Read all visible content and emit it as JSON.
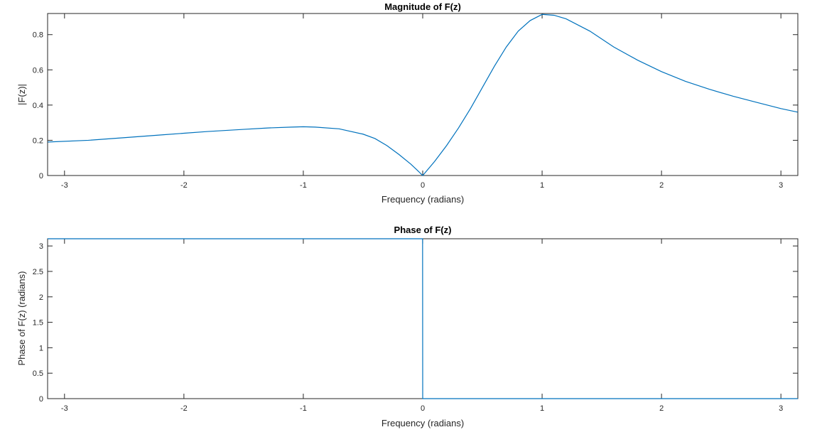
{
  "chart_data": [
    {
      "type": "line",
      "title": "Magnitude of F(z)",
      "xlabel": "Frequency (radians)",
      "ylabel": "|F(z)|",
      "xlim": [
        -3.1416,
        3.1416
      ],
      "ylim": [
        0,
        0.92
      ],
      "xticks": [
        -3,
        -2,
        -1,
        0,
        1,
        2,
        3
      ],
      "yticks": [
        0,
        0.2,
        0.4,
        0.6,
        0.8
      ],
      "yticklabels": [
        "0",
        "0.2",
        "0.4",
        "0.6",
        "0.8"
      ],
      "color": "#0072BD",
      "series": [
        {
          "x": [
            -3.14,
            -2.8,
            -2.5,
            -2.2,
            -2.0,
            -1.8,
            -1.5,
            -1.3,
            -1.1,
            -1.0,
            -0.9,
            -0.7,
            -0.5,
            -0.4,
            -0.3,
            -0.2,
            -0.1,
            -0.05,
            0.0,
            0.05,
            0.1,
            0.2,
            0.3,
            0.4,
            0.5,
            0.6,
            0.7,
            0.8,
            0.9,
            1.0,
            1.1,
            1.2,
            1.4,
            1.6,
            1.8,
            2.0,
            2.2,
            2.4,
            2.6,
            2.8,
            3.0,
            3.14
          ],
          "y": [
            0.19,
            0.2,
            0.215,
            0.23,
            0.24,
            0.25,
            0.262,
            0.27,
            0.275,
            0.277,
            0.275,
            0.265,
            0.235,
            0.21,
            0.17,
            0.12,
            0.065,
            0.033,
            0.0,
            0.04,
            0.08,
            0.17,
            0.27,
            0.38,
            0.5,
            0.62,
            0.73,
            0.82,
            0.88,
            0.915,
            0.91,
            0.89,
            0.82,
            0.73,
            0.655,
            0.59,
            0.535,
            0.49,
            0.45,
            0.415,
            0.38,
            0.36
          ]
        }
      ]
    },
    {
      "type": "line",
      "title": "Phase of F(z)",
      "xlabel": "Frequency (radians)",
      "ylabel": "Phase of F(z) (radians)",
      "xlim": [
        -3.1416,
        3.1416
      ],
      "ylim": [
        0,
        3.1416
      ],
      "xticks": [
        -3,
        -2,
        -1,
        0,
        1,
        2,
        3
      ],
      "yticks": [
        0,
        0.5,
        1,
        1.5,
        2,
        2.5,
        3
      ],
      "yticklabels": [
        "0",
        "0.5",
        "1",
        "1.5",
        "2",
        "2.5",
        "3"
      ],
      "color": "#0072BD",
      "series": [
        {
          "x": [
            -3.1416,
            -0.001,
            0.0,
            0.001,
            3.1416
          ],
          "y": [
            3.1416,
            3.1416,
            0.0,
            0.0,
            0.0
          ]
        }
      ]
    }
  ]
}
